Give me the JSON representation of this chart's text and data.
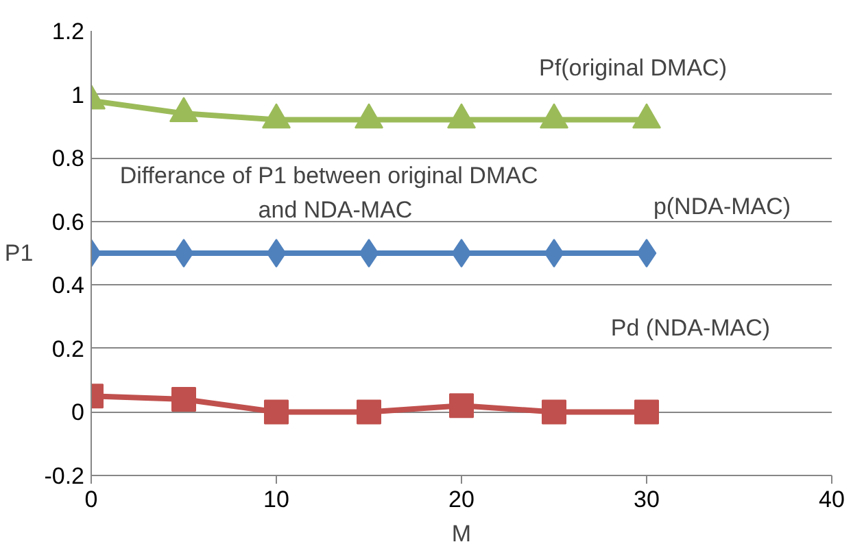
{
  "chart_data": {
    "type": "line",
    "xlabel": "M",
    "ylabel": "P1",
    "x": [
      0,
      5,
      10,
      15,
      20,
      25,
      30
    ],
    "series": [
      {
        "name": "Pf(original DMAC)",
        "color": "#9bbb59",
        "marker": "triangle",
        "values": [
          0.98,
          0.94,
          0.92,
          0.92,
          0.92,
          0.92,
          0.92
        ]
      },
      {
        "name": "p(NDA-MAC)",
        "color": "#4f81bd",
        "marker": "diamond",
        "values": [
          0.5,
          0.5,
          0.5,
          0.5,
          0.5,
          0.5,
          0.5
        ]
      },
      {
        "name": "Pd (NDA-MAC)",
        "color": "#c0504d",
        "marker": "square",
        "values": [
          0.05,
          0.04,
          0.0,
          0.0,
          0.02,
          0.0,
          0.0
        ]
      }
    ],
    "annotations": [
      "Differance of P1   between original DMAC\nand NDA-MAC"
    ],
    "xlim": [
      0,
      40
    ],
    "xticks": [
      0,
      10,
      20,
      30,
      40
    ],
    "ylim": [
      -0.2,
      1.2
    ],
    "yticks": [
      -0.2,
      0,
      0.2,
      0.4,
      0.6,
      0.8,
      1,
      1.2
    ],
    "grid": "y"
  }
}
